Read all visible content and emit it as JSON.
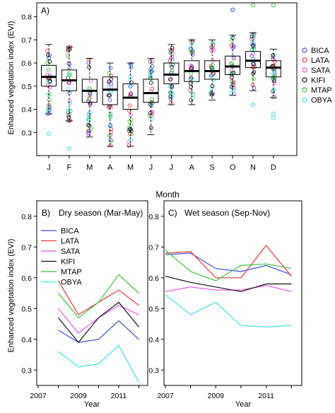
{
  "colors": {
    "BICA": "#3a4fd6",
    "LATA": "#e03a3a",
    "SATA": "#e25ae2",
    "KIFI": "#111111",
    "MTAP": "#3fbf3f",
    "OBYA": "#45e0ea"
  },
  "chart_data": [
    {
      "type": "box",
      "panel_label": "A)",
      "xlabel": "Month",
      "ylabel": "Enhanced vegetation index (EVI)",
      "categories": [
        "J",
        "F",
        "M",
        "A",
        "M",
        "J",
        "J",
        "A",
        "S",
        "O",
        "N",
        "D"
      ],
      "ylim": [
        0.2,
        0.86
      ],
      "yticks": [
        "0.3",
        "0.4",
        "0.5",
        "0.6",
        "0.7",
        "0.8"
      ],
      "boxes": [
        {
          "month": "J",
          "whisker_low": 0.38,
          "q1": 0.5,
          "median": 0.54,
          "q3": 0.59,
          "whisker_high": 0.68
        },
        {
          "month": "F",
          "whisker_low": 0.35,
          "q1": 0.48,
          "median": 0.525,
          "q3": 0.57,
          "whisker_high": 0.67
        },
        {
          "month": "M",
          "whisker_low": 0.28,
          "q1": 0.43,
          "median": 0.48,
          "q3": 0.53,
          "whisker_high": 0.62
        },
        {
          "month": "A",
          "whisker_low": 0.24,
          "q1": 0.42,
          "median": 0.485,
          "q3": 0.54,
          "whisker_high": 0.6
        },
        {
          "month": "M",
          "whisker_low": 0.24,
          "q1": 0.4,
          "median": 0.45,
          "q3": 0.51,
          "whisker_high": 0.6
        },
        {
          "month": "J",
          "whisker_low": 0.29,
          "q1": 0.43,
          "median": 0.47,
          "q3": 0.53,
          "whisker_high": 0.62
        },
        {
          "month": "J",
          "whisker_low": 0.42,
          "q1": 0.51,
          "median": 0.55,
          "q3": 0.6,
          "whisker_high": 0.68
        },
        {
          "month": "A",
          "whisker_low": 0.42,
          "q1": 0.52,
          "median": 0.565,
          "q3": 0.61,
          "whisker_high": 0.7
        },
        {
          "month": "S",
          "whisker_low": 0.44,
          "q1": 0.53,
          "median": 0.565,
          "q3": 0.61,
          "whisker_high": 0.7
        },
        {
          "month": "O",
          "whisker_low": 0.46,
          "q1": 0.55,
          "median": 0.585,
          "q3": 0.63,
          "whisker_high": 0.72
        },
        {
          "month": "N",
          "whisker_low": 0.48,
          "q1": 0.58,
          "median": 0.61,
          "q3": 0.65,
          "whisker_high": 0.73
        },
        {
          "month": "D",
          "whisker_low": 0.45,
          "q1": 0.54,
          "median": 0.58,
          "q3": 0.61,
          "whisker_high": 0.66
        }
      ],
      "outliers": [
        {
          "month": 1,
          "value": 0.295,
          "series": "OBYA"
        },
        {
          "month": 2,
          "value": 0.23,
          "series": "OBYA"
        },
        {
          "month": 10,
          "value": 0.83,
          "series": "BICA"
        },
        {
          "month": 11,
          "value": 0.85,
          "series": "MTAP"
        },
        {
          "month": 11,
          "value": 0.42,
          "series": "OBYA"
        },
        {
          "month": 12,
          "value": 0.85,
          "series": "MTAP"
        },
        {
          "month": 12,
          "value": 0.38,
          "series": "OBYA"
        },
        {
          "month": 12,
          "value": 0.365,
          "series": "OBYA"
        }
      ],
      "legend": [
        "BICA",
        "LATA",
        "SATA",
        "KIFI",
        "MTAP",
        "OBYA"
      ],
      "legend_position": "right"
    },
    {
      "type": "line",
      "panel_label": "B)",
      "title": "Dry season (Mar-May)",
      "xlabel": "Year",
      "ylabel": "Enhanced vegetation index (EVI)",
      "x": [
        2008,
        2009,
        2010,
        2011,
        2012
      ],
      "xlim": [
        2007,
        2012.3
      ],
      "xticks": [
        "2007",
        "2009",
        "2011"
      ],
      "ylim": [
        0.25,
        0.85
      ],
      "yticks": [
        "0.3",
        "0.4",
        "0.5",
        "0.6",
        "0.7",
        "0.8"
      ],
      "series": [
        {
          "name": "BICA",
          "values": [
            0.43,
            0.39,
            0.4,
            0.46,
            0.4
          ]
        },
        {
          "name": "LATA",
          "values": [
            0.59,
            0.48,
            0.52,
            0.56,
            0.51
          ]
        },
        {
          "name": "SATA",
          "values": [
            0.5,
            0.42,
            0.47,
            0.51,
            0.48
          ]
        },
        {
          "name": "KIFI",
          "values": [
            0.47,
            0.39,
            0.47,
            0.52,
            0.44
          ]
        },
        {
          "name": "MTAP",
          "values": [
            0.55,
            0.47,
            0.52,
            0.61,
            0.55
          ]
        },
        {
          "name": "OBYA",
          "values": [
            0.36,
            0.31,
            0.32,
            0.38,
            0.26
          ]
        }
      ],
      "legend_position": "top-left"
    },
    {
      "type": "line",
      "panel_label": "C)",
      "title": "Wet season (Sep-Nov)",
      "xlabel": "Year",
      "x": [
        2007,
        2008,
        2009,
        2010,
        2011,
        2012
      ],
      "xlim": [
        2007,
        2012.3
      ],
      "xticks": [
        "2007",
        "2009",
        "2011"
      ],
      "ylim": [
        0.25,
        0.85
      ],
      "yticks": [
        "0.3",
        "0.4",
        "0.5",
        "0.6",
        "0.7",
        "0.8"
      ],
      "series": [
        {
          "name": "BICA",
          "values": [
            0.675,
            0.68,
            0.63,
            0.62,
            0.64,
            0.61
          ]
        },
        {
          "name": "LATA",
          "values": [
            0.68,
            0.685,
            0.6,
            0.6,
            0.705,
            0.605
          ]
        },
        {
          "name": "SATA",
          "values": [
            0.555,
            0.57,
            0.56,
            0.56,
            0.575,
            0.555
          ]
        },
        {
          "name": "KIFI",
          "values": [
            0.605,
            0.585,
            0.57,
            0.555,
            0.58,
            0.58
          ]
        },
        {
          "name": "MTAP",
          "values": [
            0.69,
            0.62,
            0.59,
            0.64,
            0.645,
            0.63
          ]
        },
        {
          "name": "OBYA",
          "values": [
            0.545,
            0.48,
            0.52,
            0.445,
            0.44,
            0.445
          ]
        }
      ]
    }
  ]
}
